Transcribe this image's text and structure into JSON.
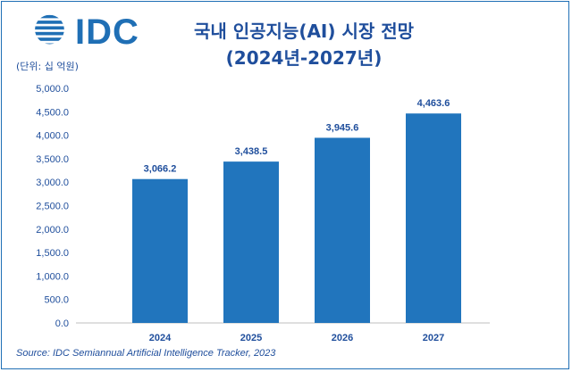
{
  "logo": {
    "text": "IDC",
    "color": "#1f6fb5"
  },
  "header": {
    "title_line1": "국내 인공지능(AI) 시장 전망",
    "title_line2": "(2024년-2027년)",
    "unit": "(단위: 십 억원)"
  },
  "footer": {
    "source": "Source: IDC Semiannual Artificial Intelligence Tracker, 2023"
  },
  "colors": {
    "bar": "#2175bd",
    "text": "#1f4e9c",
    "axis": "#bfbfbf"
  },
  "chart_data": {
    "type": "bar",
    "categories": [
      "2024",
      "2025",
      "2026",
      "2027"
    ],
    "values": [
      3066.2,
      3438.5,
      3945.6,
      4463.6
    ],
    "value_labels": [
      "3,066.2",
      "3,438.5",
      "3,945.6",
      "4,463.6"
    ],
    "ylim": [
      0,
      5000
    ],
    "yticks": [
      "0.0",
      "500.0",
      "1,000.0",
      "1,500.0",
      "2,000.0",
      "2,500.0",
      "3,000.0",
      "3,500.0",
      "4,000.0",
      "4,500.0",
      "5,000.0"
    ],
    "ytick_values": [
      0,
      500,
      1000,
      1500,
      2000,
      2500,
      3000,
      3500,
      4000,
      4500,
      5000
    ],
    "grid": false
  }
}
